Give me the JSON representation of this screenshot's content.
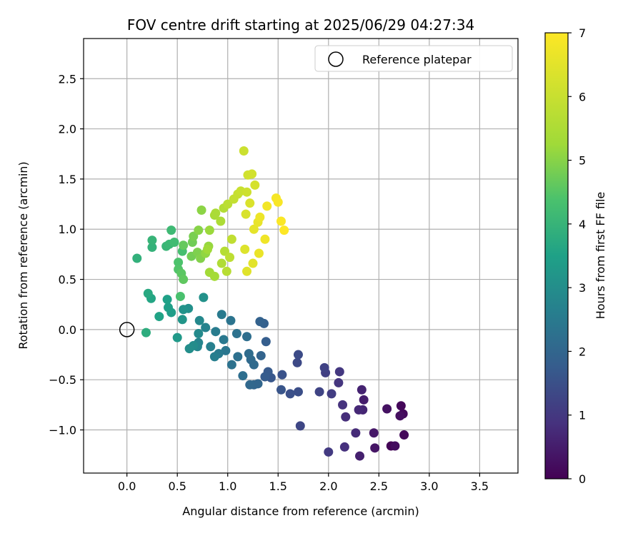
{
  "chart_data": {
    "type": "scatter",
    "title": "FOV centre drift starting at 2025/06/29 04:27:34",
    "xlabel": "Angular distance from reference (arcmin)",
    "ylabel": "Rotation from reference (arcmin)",
    "xlim": [
      -0.43,
      3.88
    ],
    "ylim": [
      -1.43,
      2.9
    ],
    "xticks": [
      0.0,
      0.5,
      1.0,
      1.5,
      2.0,
      2.5,
      3.0,
      3.5
    ],
    "yticks": [
      -1.0,
      -0.5,
      0.0,
      0.5,
      1.0,
      1.5,
      2.0,
      2.5
    ],
    "grid": true,
    "legend": {
      "placement": "upper-right",
      "entries": [
        "Reference platepar"
      ]
    },
    "colorbar": {
      "label": "Hours from first FF file",
      "range": [
        0,
        7
      ],
      "ticks": [
        0,
        1,
        2,
        3,
        4,
        5,
        6,
        7
      ],
      "colormap": "viridis"
    },
    "reference": {
      "x": 0.0,
      "y": 0.0,
      "name": "Reference platepar"
    },
    "points": [
      {
        "x": 2.62,
        "y": -1.16,
        "h": 0.05
      },
      {
        "x": 2.72,
        "y": -0.76,
        "h": 0.1
      },
      {
        "x": 2.75,
        "y": -1.05,
        "h": 0.12
      },
      {
        "x": 2.74,
        "y": -0.84,
        "h": 0.15
      },
      {
        "x": 2.66,
        "y": -1.16,
        "h": 0.2
      },
      {
        "x": 2.71,
        "y": -0.86,
        "h": 0.25
      },
      {
        "x": 2.58,
        "y": -0.79,
        "h": 0.3
      },
      {
        "x": 2.46,
        "y": -1.18,
        "h": 0.35
      },
      {
        "x": 2.45,
        "y": -1.03,
        "h": 0.4
      },
      {
        "x": 2.35,
        "y": -0.7,
        "h": 0.5
      },
      {
        "x": 2.31,
        "y": -1.26,
        "h": 0.55
      },
      {
        "x": 2.33,
        "y": -0.6,
        "h": 0.6
      },
      {
        "x": 2.34,
        "y": -0.8,
        "h": 0.65
      },
      {
        "x": 2.3,
        "y": -0.8,
        "h": 0.7
      },
      {
        "x": 2.27,
        "y": -1.03,
        "h": 0.75
      },
      {
        "x": 2.17,
        "y": -0.87,
        "h": 0.8
      },
      {
        "x": 2.16,
        "y": -1.17,
        "h": 0.85
      },
      {
        "x": 2.14,
        "y": -0.75,
        "h": 0.9
      },
      {
        "x": 2.1,
        "y": -0.53,
        "h": 0.95
      },
      {
        "x": 2.11,
        "y": -0.42,
        "h": 1.0
      },
      {
        "x": 2.0,
        "y": -1.22,
        "h": 1.05
      },
      {
        "x": 2.03,
        "y": -0.64,
        "h": 1.1
      },
      {
        "x": 1.97,
        "y": -0.43,
        "h": 1.15
      },
      {
        "x": 1.96,
        "y": -0.38,
        "h": 1.2
      },
      {
        "x": 1.91,
        "y": -0.62,
        "h": 1.25
      },
      {
        "x": 1.72,
        "y": -0.96,
        "h": 1.3
      },
      {
        "x": 1.69,
        "y": -0.33,
        "h": 1.35
      },
      {
        "x": 1.7,
        "y": -0.25,
        "h": 1.4
      },
      {
        "x": 1.7,
        "y": -0.62,
        "h": 1.45
      },
      {
        "x": 1.62,
        "y": -0.64,
        "h": 1.5
      },
      {
        "x": 1.54,
        "y": -0.45,
        "h": 1.55
      },
      {
        "x": 1.53,
        "y": -0.6,
        "h": 1.6
      },
      {
        "x": 1.43,
        "y": -0.48,
        "h": 1.65
      },
      {
        "x": 1.4,
        "y": -0.42,
        "h": 1.7
      },
      {
        "x": 1.37,
        "y": -0.47,
        "h": 1.75
      },
      {
        "x": 1.38,
        "y": -0.12,
        "h": 1.8
      },
      {
        "x": 1.36,
        "y": 0.06,
        "h": 1.85
      },
      {
        "x": 1.32,
        "y": 0.08,
        "h": 1.9
      },
      {
        "x": 1.33,
        "y": -0.26,
        "h": 1.95
      },
      {
        "x": 1.3,
        "y": -0.54,
        "h": 2.0
      },
      {
        "x": 1.26,
        "y": -0.55,
        "h": 2.0
      },
      {
        "x": 1.22,
        "y": -0.55,
        "h": 2.05
      },
      {
        "x": 1.26,
        "y": -0.35,
        "h": 2.1
      },
      {
        "x": 1.23,
        "y": -0.3,
        "h": 2.1
      },
      {
        "x": 1.21,
        "y": -0.24,
        "h": 2.15
      },
      {
        "x": 1.19,
        "y": -0.07,
        "h": 2.2
      },
      {
        "x": 1.15,
        "y": -0.46,
        "h": 2.2
      },
      {
        "x": 1.1,
        "y": -0.27,
        "h": 2.25
      },
      {
        "x": 1.09,
        "y": -0.04,
        "h": 2.3
      },
      {
        "x": 1.04,
        "y": -0.35,
        "h": 2.3
      },
      {
        "x": 1.03,
        "y": 0.09,
        "h": 2.35
      },
      {
        "x": 0.98,
        "y": -0.21,
        "h": 2.4
      },
      {
        "x": 0.96,
        "y": -0.1,
        "h": 2.45
      },
      {
        "x": 0.94,
        "y": 0.15,
        "h": 2.5
      },
      {
        "x": 0.91,
        "y": -0.24,
        "h": 2.5
      },
      {
        "x": 0.88,
        "y": -0.02,
        "h": 2.55
      },
      {
        "x": 0.87,
        "y": -0.27,
        "h": 2.6
      },
      {
        "x": 0.83,
        "y": -0.17,
        "h": 2.65
      },
      {
        "x": 0.78,
        "y": 0.02,
        "h": 2.7
      },
      {
        "x": 0.71,
        "y": -0.13,
        "h": 2.75
      },
      {
        "x": 0.7,
        "y": -0.17,
        "h": 2.8
      },
      {
        "x": 0.72,
        "y": 0.09,
        "h": 2.85
      },
      {
        "x": 0.71,
        "y": -0.04,
        "h": 2.9
      },
      {
        "x": 0.66,
        "y": -0.16,
        "h": 2.95
      },
      {
        "x": 0.62,
        "y": -0.19,
        "h": 3.0
      },
      {
        "x": 0.61,
        "y": 0.21,
        "h": 3.05
      },
      {
        "x": 0.76,
        "y": 0.32,
        "h": 3.1
      },
      {
        "x": 0.56,
        "y": 0.2,
        "h": 3.15
      },
      {
        "x": 0.55,
        "y": 0.1,
        "h": 3.2
      },
      {
        "x": 0.5,
        "y": -0.08,
        "h": 3.3
      },
      {
        "x": 0.44,
        "y": 0.17,
        "h": 3.4
      },
      {
        "x": 0.41,
        "y": 0.22,
        "h": 3.45
      },
      {
        "x": 0.4,
        "y": 0.3,
        "h": 3.5
      },
      {
        "x": 0.32,
        "y": 0.13,
        "h": 3.55
      },
      {
        "x": 0.24,
        "y": 0.31,
        "h": 3.6
      },
      {
        "x": 0.21,
        "y": 0.36,
        "h": 3.7
      },
      {
        "x": 0.19,
        "y": -0.03,
        "h": 3.8
      },
      {
        "x": 0.1,
        "y": 0.71,
        "h": 3.9
      },
      {
        "x": 0.25,
        "y": 0.82,
        "h": 3.95
      },
      {
        "x": 0.25,
        "y": 0.89,
        "h": 4.0
      },
      {
        "x": 0.39,
        "y": 0.83,
        "h": 4.05
      },
      {
        "x": 0.42,
        "y": 0.85,
        "h": 4.1
      },
      {
        "x": 0.44,
        "y": 0.99,
        "h": 4.15
      },
      {
        "x": 0.47,
        "y": 0.87,
        "h": 4.2
      },
      {
        "x": 0.55,
        "y": 0.78,
        "h": 4.3
      },
      {
        "x": 0.53,
        "y": 0.33,
        "h": 4.35
      },
      {
        "x": 0.51,
        "y": 0.67,
        "h": 4.4
      },
      {
        "x": 0.51,
        "y": 0.6,
        "h": 4.45
      },
      {
        "x": 0.54,
        "y": 0.56,
        "h": 4.55
      },
      {
        "x": 0.56,
        "y": 0.5,
        "h": 4.6
      },
      {
        "x": 0.56,
        "y": 0.84,
        "h": 4.65
      },
      {
        "x": 0.65,
        "y": 0.87,
        "h": 4.75
      },
      {
        "x": 0.64,
        "y": 0.73,
        "h": 4.8
      },
      {
        "x": 0.66,
        "y": 0.93,
        "h": 4.85
      },
      {
        "x": 0.7,
        "y": 0.77,
        "h": 4.9
      },
      {
        "x": 0.73,
        "y": 0.71,
        "h": 4.95
      },
      {
        "x": 0.71,
        "y": 0.99,
        "h": 5.0
      },
      {
        "x": 0.74,
        "y": 1.19,
        "h": 5.05
      },
      {
        "x": 0.78,
        "y": 0.76,
        "h": 5.1
      },
      {
        "x": 0.81,
        "y": 0.83,
        "h": 5.15
      },
      {
        "x": 0.82,
        "y": 0.99,
        "h": 5.2
      },
      {
        "x": 0.8,
        "y": 0.8,
        "h": 5.25
      },
      {
        "x": 0.82,
        "y": 0.57,
        "h": 5.3
      },
      {
        "x": 0.87,
        "y": 0.53,
        "h": 5.35
      },
      {
        "x": 0.87,
        "y": 1.14,
        "h": 5.4
      },
      {
        "x": 0.88,
        "y": 1.16,
        "h": 5.45
      },
      {
        "x": 0.93,
        "y": 1.08,
        "h": 5.5
      },
      {
        "x": 0.94,
        "y": 0.66,
        "h": 5.55
      },
      {
        "x": 0.96,
        "y": 1.21,
        "h": 5.6
      },
      {
        "x": 0.97,
        "y": 0.78,
        "h": 5.65
      },
      {
        "x": 0.99,
        "y": 0.58,
        "h": 5.7
      },
      {
        "x": 1.0,
        "y": 1.25,
        "h": 5.75
      },
      {
        "x": 1.02,
        "y": 0.72,
        "h": 5.8
      },
      {
        "x": 1.04,
        "y": 0.9,
        "h": 5.85
      },
      {
        "x": 1.06,
        "y": 1.3,
        "h": 5.9
      },
      {
        "x": 1.1,
        "y": 1.35,
        "h": 5.95
      },
      {
        "x": 1.13,
        "y": 1.38,
        "h": 6.0
      },
      {
        "x": 1.16,
        "y": 1.78,
        "h": 6.05
      },
      {
        "x": 1.19,
        "y": 1.37,
        "h": 6.1
      },
      {
        "x": 1.2,
        "y": 1.54,
        "h": 6.15
      },
      {
        "x": 1.24,
        "y": 1.55,
        "h": 6.2
      },
      {
        "x": 1.27,
        "y": 1.44,
        "h": 6.25
      },
      {
        "x": 1.18,
        "y": 1.15,
        "h": 6.3
      },
      {
        "x": 1.22,
        "y": 1.26,
        "h": 6.35
      },
      {
        "x": 1.17,
        "y": 0.8,
        "h": 6.4
      },
      {
        "x": 1.19,
        "y": 0.58,
        "h": 6.45
      },
      {
        "x": 1.25,
        "y": 0.66,
        "h": 6.5
      },
      {
        "x": 1.26,
        "y": 1.0,
        "h": 6.55
      },
      {
        "x": 1.3,
        "y": 1.07,
        "h": 6.6
      },
      {
        "x": 1.31,
        "y": 0.76,
        "h": 6.65
      },
      {
        "x": 1.32,
        "y": 1.12,
        "h": 6.7
      },
      {
        "x": 1.37,
        "y": 0.9,
        "h": 6.75
      },
      {
        "x": 1.39,
        "y": 1.23,
        "h": 6.8
      },
      {
        "x": 1.48,
        "y": 1.31,
        "h": 6.85
      },
      {
        "x": 1.5,
        "y": 1.27,
        "h": 6.9
      },
      {
        "x": 1.53,
        "y": 1.08,
        "h": 6.95
      },
      {
        "x": 1.56,
        "y": 0.99,
        "h": 7.0
      }
    ]
  }
}
